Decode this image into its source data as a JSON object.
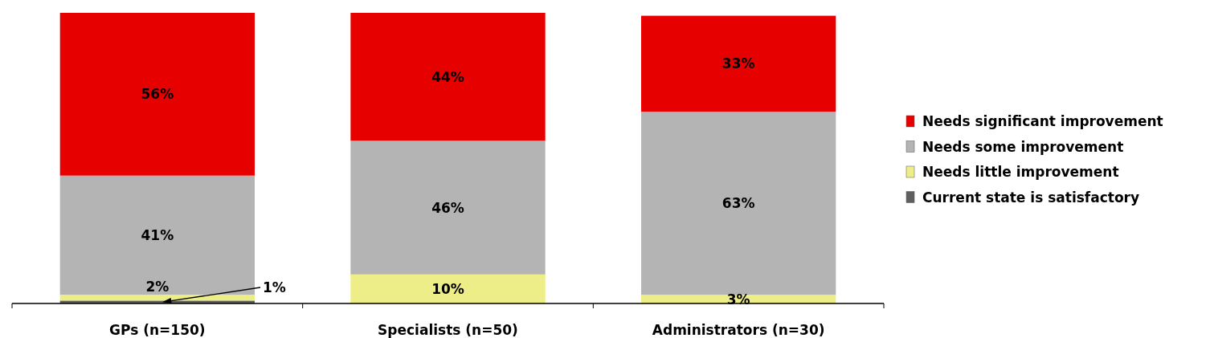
{
  "chart_data": {
    "type": "bar",
    "stacked": true,
    "categories": [
      "GPs (n=150)",
      "Specialists (n=50)",
      "Administrators (n=30)"
    ],
    "series": [
      {
        "name": "Current state is satisfactory",
        "color": "#5f5f5f",
        "values": [
          1,
          0,
          0
        ],
        "value_labels": [
          "1%",
          null,
          null
        ]
      },
      {
        "name": "Needs little improvement",
        "color": "#eeee88",
        "values": [
          2,
          10,
          3
        ],
        "value_labels": [
          "2%",
          "10%",
          "3%"
        ]
      },
      {
        "name": "Needs some improvement",
        "color": "#b4b4b4",
        "values": [
          41,
          46,
          63
        ],
        "value_labels": [
          "41%",
          "46%",
          "63%"
        ]
      },
      {
        "name": "Needs significant improvement",
        "color": "#e60000",
        "values": [
          56,
          44,
          33
        ],
        "value_labels": [
          "56%",
          "44%",
          "33%"
        ]
      }
    ],
    "legend": "right"
  }
}
